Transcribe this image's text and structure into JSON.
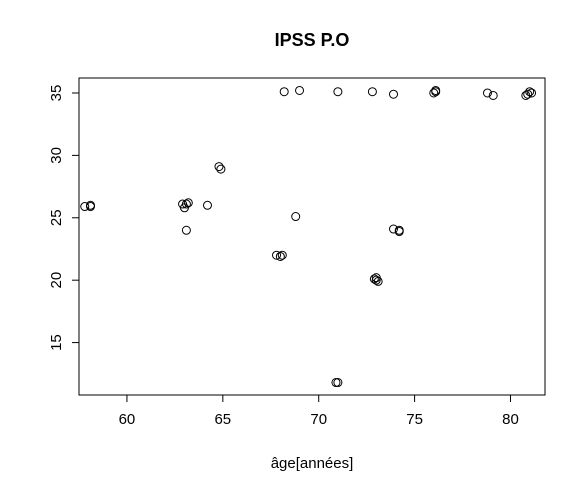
{
  "chart_data": {
    "type": "scatter",
    "title": "IPSS P.O",
    "xlabel": "âge[années]",
    "ylabel": "",
    "xlim": [
      57.5,
      81.8
    ],
    "ylim": [
      10.8,
      36.2
    ],
    "xticks": [
      60,
      65,
      70,
      75,
      80
    ],
    "yticks": [
      15,
      20,
      25,
      30,
      35
    ],
    "grid": false,
    "marker": "open-circle",
    "points": [
      {
        "x": 57.8,
        "y": 25.9
      },
      {
        "x": 58.1,
        "y": 25.9
      },
      {
        "x": 58.1,
        "y": 26.0
      },
      {
        "x": 62.9,
        "y": 26.1
      },
      {
        "x": 63.0,
        "y": 25.8
      },
      {
        "x": 63.1,
        "y": 26.1
      },
      {
        "x": 63.2,
        "y": 26.2
      },
      {
        "x": 63.1,
        "y": 24.0
      },
      {
        "x": 64.2,
        "y": 26.0
      },
      {
        "x": 64.8,
        "y": 29.1
      },
      {
        "x": 64.9,
        "y": 28.9
      },
      {
        "x": 67.8,
        "y": 22.0
      },
      {
        "x": 68.0,
        "y": 21.9
      },
      {
        "x": 68.1,
        "y": 22.0
      },
      {
        "x": 68.8,
        "y": 25.1
      },
      {
        "x": 68.2,
        "y": 35.1
      },
      {
        "x": 69.0,
        "y": 35.2
      },
      {
        "x": 71.0,
        "y": 35.1
      },
      {
        "x": 72.8,
        "y": 35.1
      },
      {
        "x": 73.9,
        "y": 34.9
      },
      {
        "x": 70.9,
        "y": 11.8
      },
      {
        "x": 71.0,
        "y": 11.8
      },
      {
        "x": 72.9,
        "y": 20.1
      },
      {
        "x": 73.0,
        "y": 20.2
      },
      {
        "x": 73.0,
        "y": 20.0
      },
      {
        "x": 73.1,
        "y": 19.9
      },
      {
        "x": 73.9,
        "y": 24.1
      },
      {
        "x": 74.2,
        "y": 24.0
      },
      {
        "x": 74.2,
        "y": 23.9
      },
      {
        "x": 76.0,
        "y": 35.0
      },
      {
        "x": 76.1,
        "y": 35.1
      },
      {
        "x": 76.1,
        "y": 35.2
      },
      {
        "x": 78.8,
        "y": 35.0
      },
      {
        "x": 79.1,
        "y": 34.8
      },
      {
        "x": 80.8,
        "y": 34.8
      },
      {
        "x": 80.9,
        "y": 34.9
      },
      {
        "x": 81.0,
        "y": 35.1
      },
      {
        "x": 81.1,
        "y": 35.0
      }
    ]
  }
}
